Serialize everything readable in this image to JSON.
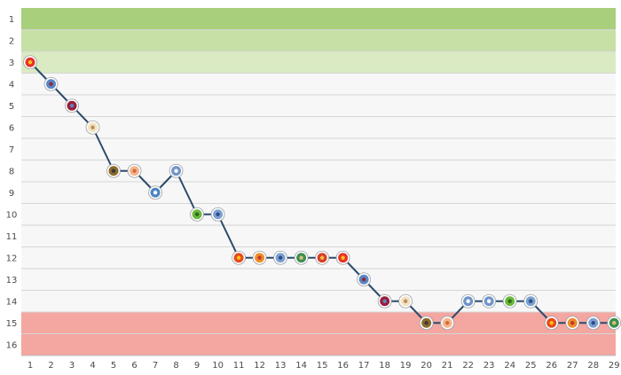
{
  "chart_data": {
    "type": "line",
    "title": "",
    "xlabel": "",
    "ylabel": "",
    "x": [
      1,
      2,
      3,
      4,
      5,
      6,
      7,
      8,
      9,
      10,
      11,
      12,
      13,
      14,
      15,
      16,
      17,
      18,
      19,
      20,
      21,
      22,
      23,
      24,
      25,
      26,
      27,
      28,
      29
    ],
    "x_tick_labels": [
      "1",
      "2",
      "3",
      "4",
      "5",
      "6",
      "7",
      "8",
      "9",
      "10",
      "11",
      "12",
      "13",
      "14",
      "15",
      "16",
      "17",
      "18",
      "19",
      "20",
      "21",
      "22",
      "23",
      "24",
      "25",
      "26",
      "27",
      "28",
      "29"
    ],
    "y_tick_labels": [
      "1",
      "2",
      "3",
      "4",
      "5",
      "6",
      "7",
      "8",
      "9",
      "10",
      "11",
      "12",
      "13",
      "14",
      "15",
      "16"
    ],
    "ylim": [
      1,
      16
    ],
    "y_inverted": true,
    "grid": true,
    "series": [
      {
        "values": [
          3,
          4,
          5,
          6,
          8,
          8,
          9,
          8,
          10,
          10,
          12,
          12,
          12,
          12,
          12,
          12,
          13,
          14,
          14,
          15,
          15,
          14,
          14,
          14,
          14,
          15,
          15,
          15,
          15
        ],
        "color": "#2d4a6b",
        "markers": [
          "red-shield-badge",
          "blue-claret-shield-badge",
          "claret-shield-badge",
          "cream-badge",
          "brown-badge",
          "peach-round-badge",
          "blue-star-badge",
          "blue-stripe-badge",
          "green-badge",
          "blue-round-badge",
          "red-orange-badge",
          "orange-badge",
          "blue-round-badge",
          "green-round-badge",
          "red-round-badge",
          "red-shield-badge",
          "blue-claret-shield-badge",
          "claret-shield-badge",
          "cream-badge",
          "brown-badge",
          "peach-round-badge",
          "blue-stripe-badge",
          "blue-stripe-badge",
          "green-badge",
          "blue-round-badge",
          "red-orange-badge",
          "orange-badge",
          "blue-round-badge",
          "green-round-badge"
        ]
      }
    ],
    "bands": [
      {
        "from": 1,
        "to": 2,
        "color": "#a8cf7c"
      },
      {
        "from": 2,
        "to": 3,
        "color": "#c6e0a6"
      },
      {
        "from": 3,
        "to": 3,
        "color": "#daebc4"
      },
      {
        "from": 15,
        "to": 16,
        "color": "#f4a6a1"
      }
    ]
  }
}
